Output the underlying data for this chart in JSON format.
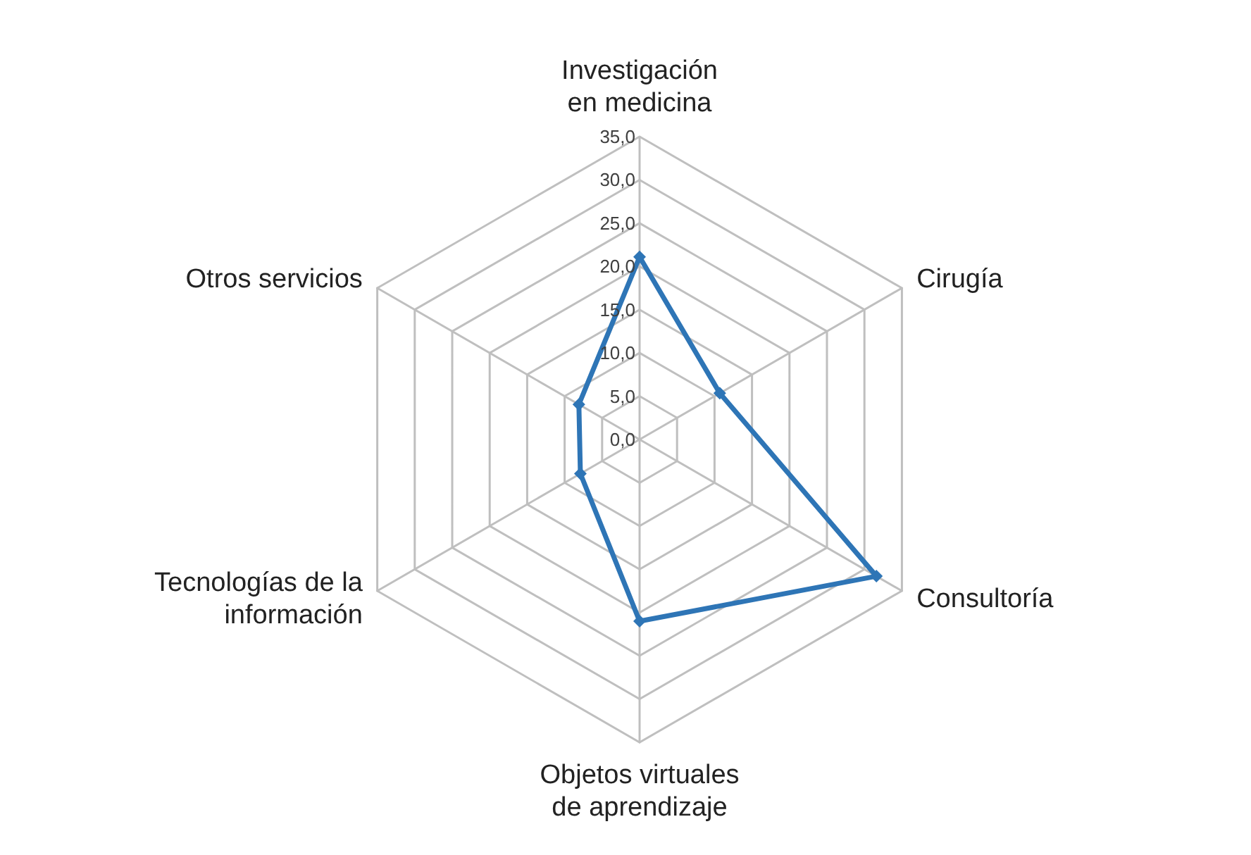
{
  "chart_data": {
    "type": "radar",
    "categories": [
      "Investigación\nen medicina",
      "Cirugía",
      "Consultoría",
      "Objetos virtuales\nde aprendizaje",
      "Tecnologías de la\ninformación",
      "Otros servicios"
    ],
    "series": [
      {
        "color": "#2e75b6",
        "values": [
          21.1,
          10.7,
          31.6,
          21.0,
          7.9,
          8.1
        ]
      }
    ],
    "ylim": [
      0,
      35
    ],
    "yticks": [
      {
        "value": 0,
        "label": "0,0"
      },
      {
        "value": 5,
        "label": "5,0"
      },
      {
        "value": 10,
        "label": "10,0"
      },
      {
        "value": 15,
        "label": "15,0"
      },
      {
        "value": 20,
        "label": "20,0"
      },
      {
        "value": 25,
        "label": "25,0"
      },
      {
        "value": 30,
        "label": "30,0"
      },
      {
        "value": 35,
        "label": "35,0"
      }
    ],
    "grid": true,
    "marker": "diamond",
    "line_style": "solid"
  }
}
